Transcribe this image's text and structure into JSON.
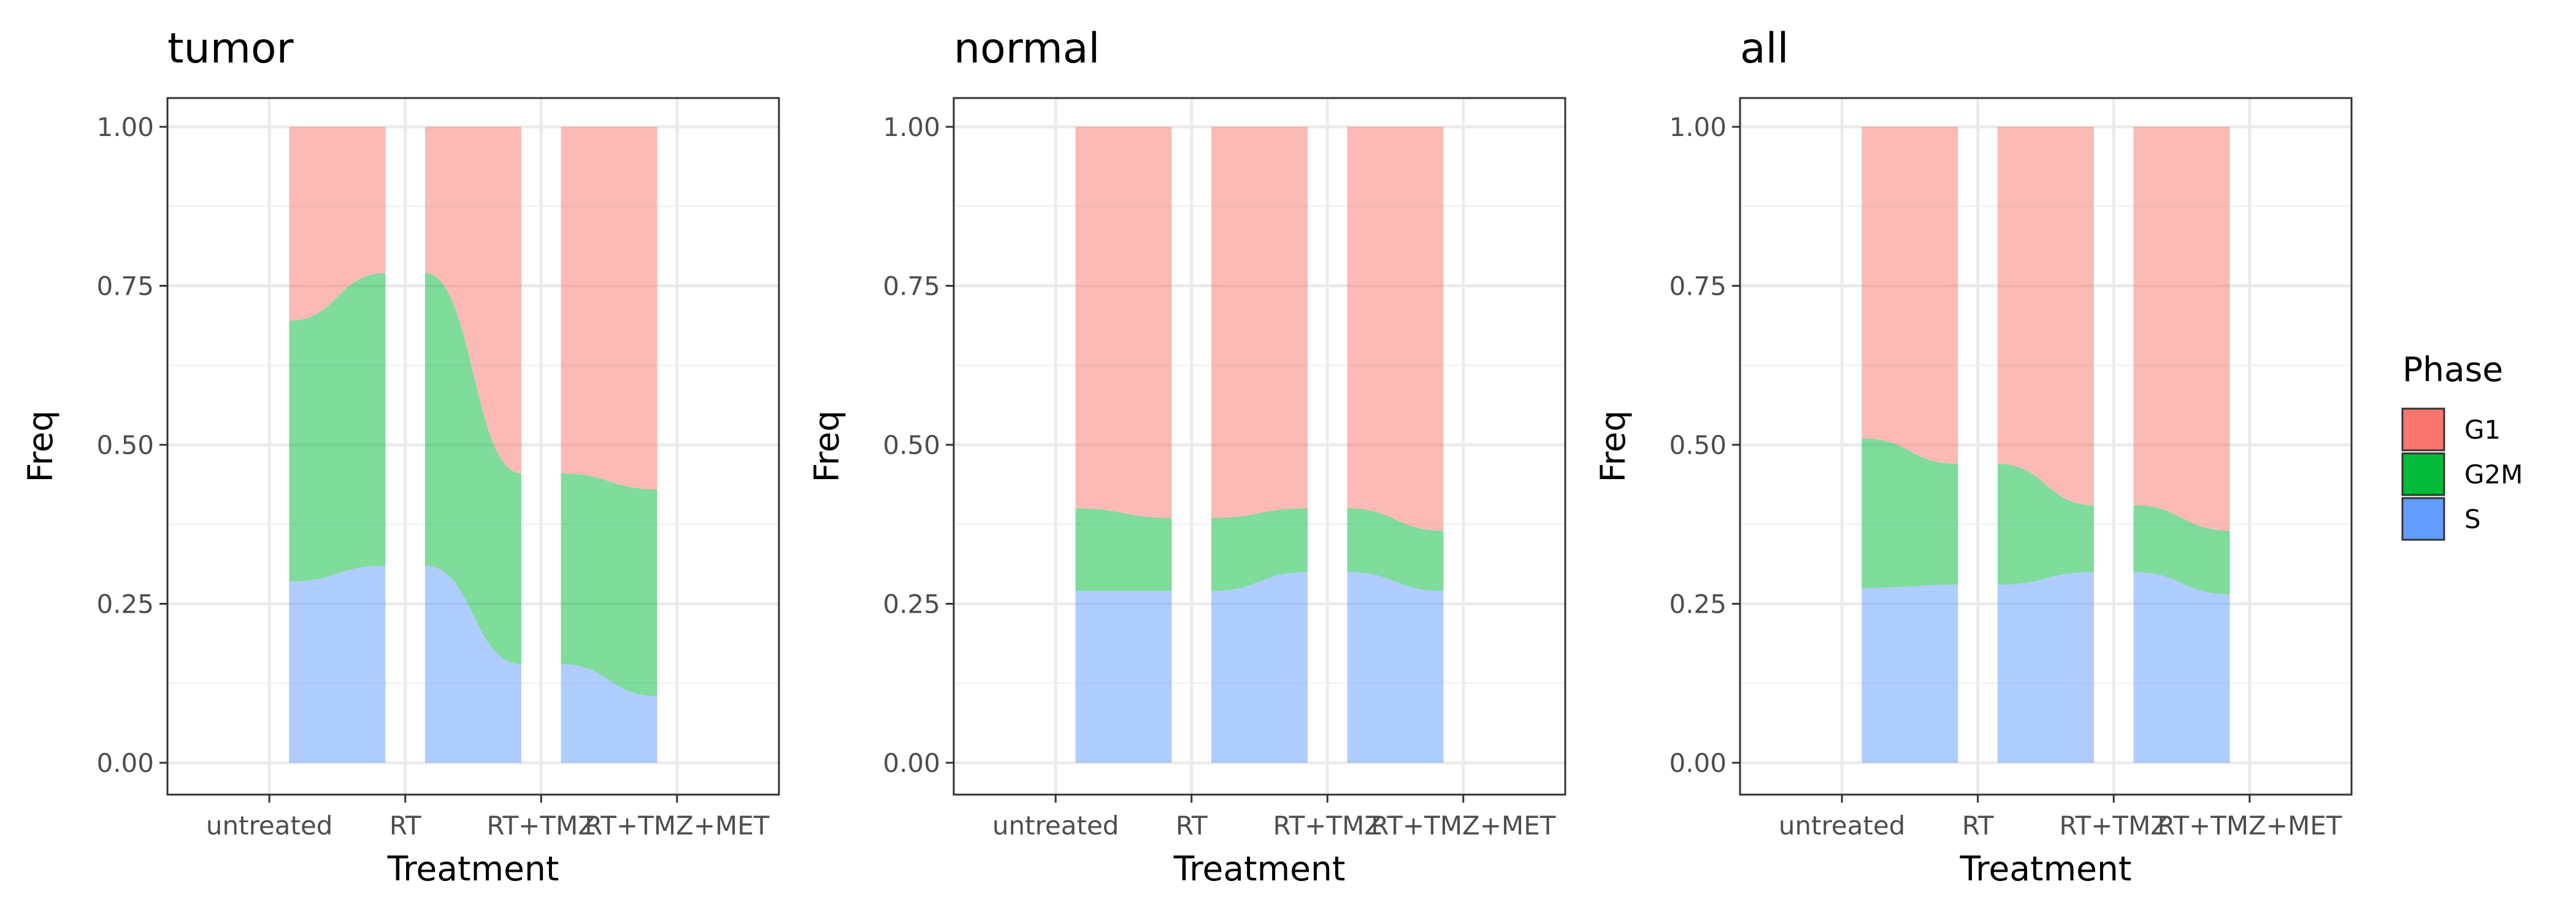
{
  "chart_data": [
    {
      "type": "alluvial",
      "title": "tumor",
      "xlabel": "Treatment",
      "ylabel": "Freq",
      "categories": [
        "untreated",
        "RT",
        "RT+TMZ",
        "RT+TMZ+MET"
      ],
      "yticks": [
        "0.00",
        "0.25",
        "0.50",
        "0.75",
        "1.00"
      ],
      "ylim": [
        0,
        1
      ],
      "grid": true,
      "stack_order": [
        "S",
        "G2M",
        "G1"
      ],
      "bars": [
        {
          "from": "untreated",
          "to": "RT",
          "S": [
            0.285,
            0.31
          ],
          "G2M": [
            0.41,
            0.46
          ]
        },
        {
          "from": "RT",
          "to": "RT+TMZ",
          "S": [
            0.31,
            0.155
          ],
          "G2M": [
            0.46,
            0.3
          ]
        },
        {
          "from": "RT+TMZ",
          "to": "RT+TMZ+MET",
          "S": [
            0.155,
            0.105
          ],
          "G2M": [
            0.3,
            0.325
          ]
        }
      ]
    },
    {
      "type": "alluvial",
      "title": "normal",
      "xlabel": "Treatment",
      "ylabel": "Freq",
      "categories": [
        "untreated",
        "RT",
        "RT+TMZ",
        "RT+TMZ+MET"
      ],
      "yticks": [
        "0.00",
        "0.25",
        "0.50",
        "0.75",
        "1.00"
      ],
      "ylim": [
        0,
        1
      ],
      "grid": true,
      "stack_order": [
        "S",
        "G2M",
        "G1"
      ],
      "bars": [
        {
          "from": "untreated",
          "to": "RT",
          "S": [
            0.27,
            0.27
          ],
          "G2M": [
            0.13,
            0.115
          ]
        },
        {
          "from": "RT",
          "to": "RT+TMZ",
          "S": [
            0.27,
            0.3
          ],
          "G2M": [
            0.115,
            0.1
          ]
        },
        {
          "from": "RT+TMZ",
          "to": "RT+TMZ+MET",
          "S": [
            0.3,
            0.27
          ],
          "G2M": [
            0.1,
            0.095
          ]
        }
      ]
    },
    {
      "type": "alluvial",
      "title": "all",
      "xlabel": "Treatment",
      "ylabel": "Freq",
      "categories": [
        "untreated",
        "RT",
        "RT+TMZ",
        "RT+TMZ+MET"
      ],
      "yticks": [
        "0.00",
        "0.25",
        "0.50",
        "0.75",
        "1.00"
      ],
      "ylim": [
        0,
        1
      ],
      "grid": true,
      "stack_order": [
        "S",
        "G2M",
        "G1"
      ],
      "bars": [
        {
          "from": "untreated",
          "to": "RT",
          "S": [
            0.275,
            0.28
          ],
          "G2M": [
            0.235,
            0.19
          ]
        },
        {
          "from": "RT",
          "to": "RT+TMZ",
          "S": [
            0.28,
            0.3
          ],
          "G2M": [
            0.19,
            0.105
          ]
        },
        {
          "from": "RT+TMZ",
          "to": "RT+TMZ+MET",
          "S": [
            0.3,
            0.265
          ],
          "G2M": [
            0.105,
            0.1
          ]
        }
      ]
    }
  ],
  "legend": {
    "title": "Phase",
    "placement": "right",
    "items": [
      {
        "label": "G1",
        "color": "#F8766D"
      },
      {
        "label": "G2M",
        "color": "#00BA38"
      },
      {
        "label": "S",
        "color": "#619CFF"
      }
    ]
  }
}
